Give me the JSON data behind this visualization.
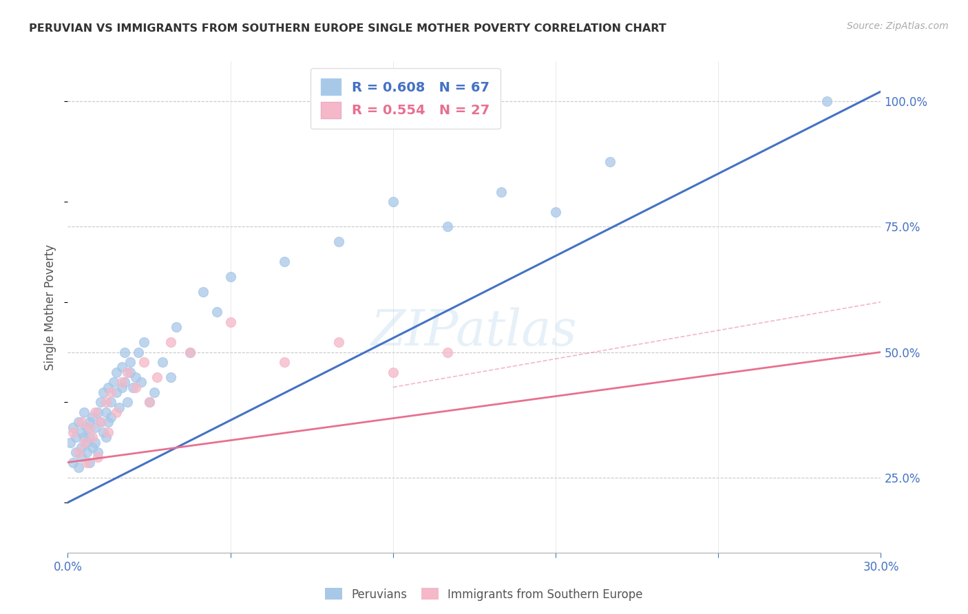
{
  "title": "PERUVIAN VS IMMIGRANTS FROM SOUTHERN EUROPE SINGLE MOTHER POVERTY CORRELATION CHART",
  "source": "Source: ZipAtlas.com",
  "ylabel": "Single Mother Poverty",
  "x_min": 0.0,
  "x_max": 0.3,
  "y_min": 0.1,
  "y_max": 1.08,
  "x_ticks": [
    0.0,
    0.06,
    0.12,
    0.18,
    0.24,
    0.3
  ],
  "y_tick_labels_right": [
    "25.0%",
    "50.0%",
    "75.0%",
    "100.0%"
  ],
  "y_tick_vals_right": [
    0.25,
    0.5,
    0.75,
    1.0
  ],
  "blue_R": 0.608,
  "blue_N": 67,
  "pink_R": 0.554,
  "pink_N": 27,
  "blue_color": "#a8c8e8",
  "blue_line_color": "#4472c4",
  "pink_color": "#f4b8c8",
  "pink_line_color": "#e87090",
  "axis_color": "#4472c4",
  "grid_color": "#c8c8c8",
  "watermark": "ZIPatlas",
  "blue_scatter_x": [
    0.001,
    0.002,
    0.002,
    0.003,
    0.003,
    0.004,
    0.004,
    0.005,
    0.005,
    0.005,
    0.006,
    0.006,
    0.007,
    0.007,
    0.007,
    0.008,
    0.008,
    0.008,
    0.009,
    0.009,
    0.01,
    0.01,
    0.011,
    0.011,
    0.012,
    0.012,
    0.013,
    0.013,
    0.014,
    0.014,
    0.015,
    0.015,
    0.016,
    0.016,
    0.017,
    0.018,
    0.018,
    0.019,
    0.02,
    0.02,
    0.021,
    0.021,
    0.022,
    0.023,
    0.023,
    0.024,
    0.025,
    0.026,
    0.027,
    0.028,
    0.03,
    0.032,
    0.035,
    0.038,
    0.04,
    0.045,
    0.05,
    0.055,
    0.06,
    0.08,
    0.1,
    0.12,
    0.14,
    0.16,
    0.18,
    0.2,
    0.28
  ],
  "blue_scatter_y": [
    0.32,
    0.28,
    0.35,
    0.3,
    0.33,
    0.27,
    0.36,
    0.29,
    0.34,
    0.31,
    0.33,
    0.38,
    0.3,
    0.35,
    0.32,
    0.28,
    0.36,
    0.33,
    0.31,
    0.37,
    0.35,
    0.32,
    0.38,
    0.3,
    0.36,
    0.4,
    0.34,
    0.42,
    0.33,
    0.38,
    0.36,
    0.43,
    0.4,
    0.37,
    0.44,
    0.42,
    0.46,
    0.39,
    0.43,
    0.47,
    0.44,
    0.5,
    0.4,
    0.46,
    0.48,
    0.43,
    0.45,
    0.5,
    0.44,
    0.52,
    0.4,
    0.42,
    0.48,
    0.45,
    0.55,
    0.5,
    0.62,
    0.58,
    0.65,
    0.68,
    0.72,
    0.8,
    0.75,
    0.82,
    0.78,
    0.88,
    1.0
  ],
  "pink_scatter_x": [
    0.002,
    0.004,
    0.005,
    0.006,
    0.007,
    0.008,
    0.009,
    0.01,
    0.011,
    0.012,
    0.014,
    0.015,
    0.016,
    0.018,
    0.02,
    0.022,
    0.025,
    0.028,
    0.03,
    0.033,
    0.038,
    0.045,
    0.06,
    0.08,
    0.1,
    0.12,
    0.14
  ],
  "pink_scatter_y": [
    0.34,
    0.3,
    0.36,
    0.32,
    0.28,
    0.35,
    0.33,
    0.38,
    0.29,
    0.36,
    0.4,
    0.34,
    0.42,
    0.38,
    0.44,
    0.46,
    0.43,
    0.48,
    0.4,
    0.45,
    0.52,
    0.5,
    0.56,
    0.48,
    0.52,
    0.46,
    0.5
  ],
  "blue_line_x": [
    0.0,
    0.3
  ],
  "blue_line_y": [
    0.2,
    1.02
  ],
  "pink_line_x": [
    0.0,
    0.3
  ],
  "pink_line_y": [
    0.28,
    0.5
  ],
  "pink_dash_line_x": [
    0.12,
    0.3
  ],
  "pink_dash_line_y": [
    0.43,
    0.6
  ]
}
